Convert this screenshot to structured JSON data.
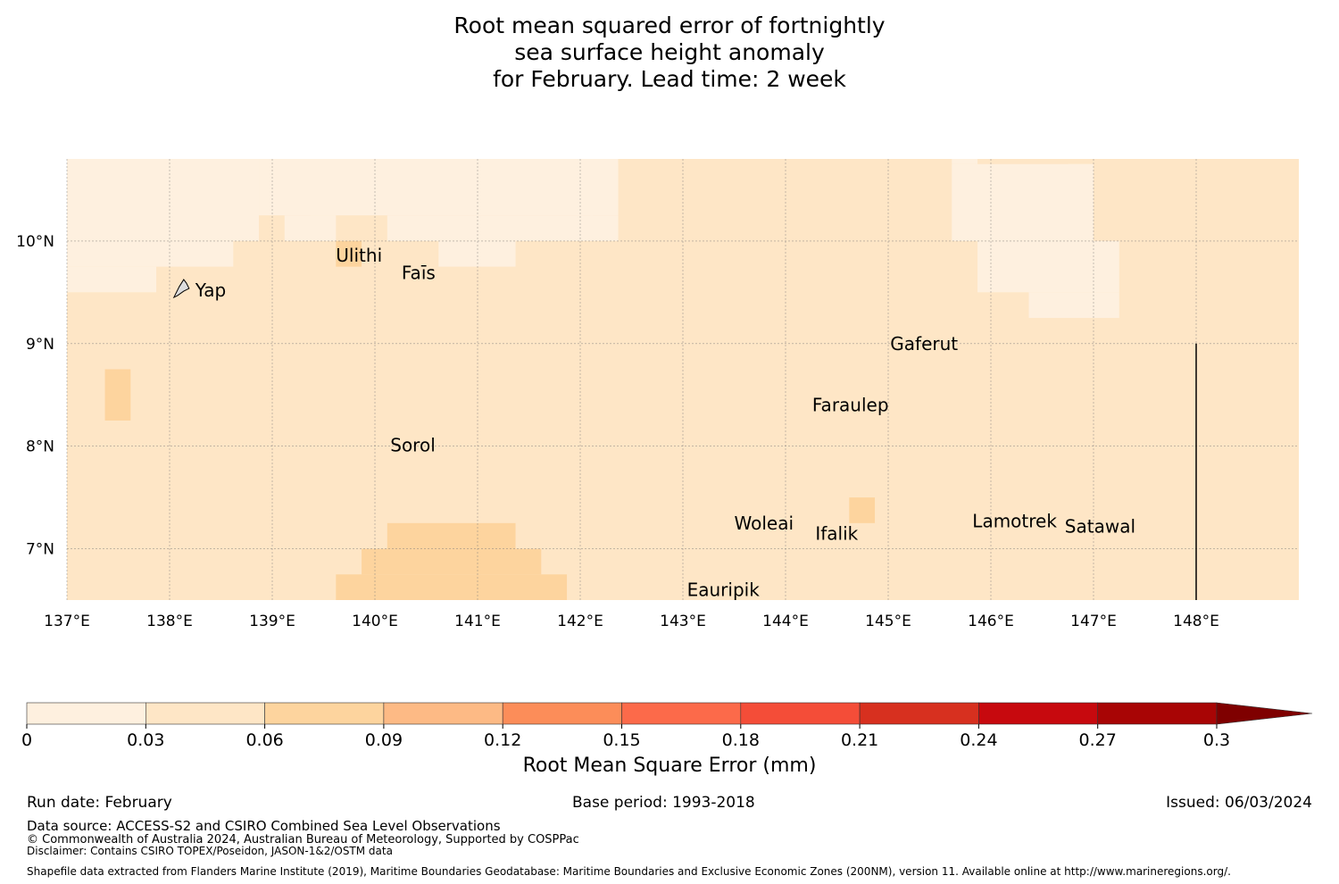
{
  "title_lines": [
    "Root mean squared error of fortnightly",
    "sea surface height anomaly",
    "for February. Lead time: 2 week"
  ],
  "map": {
    "lon_range": [
      137,
      149
    ],
    "lat_range": [
      6.5,
      10.8
    ],
    "lon_ticks": [
      137,
      138,
      139,
      140,
      141,
      142,
      143,
      144,
      145,
      146,
      147,
      148
    ],
    "lon_tick_labels": [
      "137°E",
      "138°E",
      "139°E",
      "140°E",
      "141°E",
      "142°E",
      "143°E",
      "144°E",
      "145°E",
      "146°E",
      "147°E",
      "148°E"
    ],
    "lat_ticks": [
      7,
      8,
      9,
      10
    ],
    "lat_tick_labels": [
      "7°N",
      "8°N",
      "9°N",
      "10°N"
    ],
    "background_color": "#fee6c6",
    "cell_colors": {
      "low": "#fef0df",
      "mid": "#fee6c6",
      "high": "#fdd49e"
    },
    "regions": [
      {
        "level": "low",
        "lon": [
          137.0,
          138.87
        ],
        "lat": [
          10.0,
          10.8
        ]
      },
      {
        "level": "low",
        "lon": [
          138.87,
          142.37
        ],
        "lat": [
          10.25,
          10.8
        ]
      },
      {
        "level": "low",
        "lon": [
          142.1,
          142.37
        ],
        "lat": [
          10.0,
          10.25
        ]
      },
      {
        "level": "low",
        "lon": [
          137.0,
          138.62
        ],
        "lat": [
          9.75,
          10.0
        ]
      },
      {
        "level": "low",
        "lon": [
          137.0,
          137.87
        ],
        "lat": [
          9.5,
          9.75
        ]
      },
      {
        "level": "low",
        "lon": [
          139.12,
          139.62
        ],
        "lat": [
          10.0,
          10.25
        ]
      },
      {
        "level": "low",
        "lon": [
          139.37,
          139.62
        ],
        "lat": [
          10.25,
          10.5
        ]
      },
      {
        "level": "low",
        "lon": [
          140.12,
          142.12
        ],
        "lat": [
          10.0,
          10.25
        ]
      },
      {
        "level": "low",
        "lon": [
          140.62,
          141.37
        ],
        "lat": [
          9.75,
          10.0
        ]
      },
      {
        "level": "mid",
        "lon": [
          142.37,
          149.0
        ],
        "lat": [
          10.75,
          10.8
        ]
      },
      {
        "level": "low",
        "lon": [
          145.62,
          147.0
        ],
        "lat": [
          10.0,
          10.75
        ]
      },
      {
        "level": "low",
        "lon": [
          145.62,
          145.87
        ],
        "lat": [
          10.75,
          10.8
        ]
      },
      {
        "level": "low",
        "lon": [
          146.75,
          147.0
        ],
        "lat": [
          10.5,
          10.75
        ]
      },
      {
        "level": "low",
        "lon": [
          145.87,
          147.25
        ],
        "lat": [
          9.5,
          10.0
        ]
      },
      {
        "level": "low",
        "lon": [
          146.37,
          147.25
        ],
        "lat": [
          9.25,
          9.5
        ]
      },
      {
        "level": "high",
        "lon": [
          139.62,
          139.87
        ],
        "lat": [
          9.75,
          10.0
        ]
      },
      {
        "level": "high",
        "lon": [
          137.37,
          137.62
        ],
        "lat": [
          8.25,
          8.75
        ]
      },
      {
        "level": "high",
        "lon": [
          144.62,
          144.87
        ],
        "lat": [
          7.25,
          7.5
        ]
      },
      {
        "level": "high",
        "lon": [
          140.12,
          141.37
        ],
        "lat": [
          7.0,
          7.25
        ]
      },
      {
        "level": "high",
        "lon": [
          139.87,
          141.62
        ],
        "lat": [
          6.75,
          7.0
        ]
      },
      {
        "level": "high",
        "lon": [
          139.62,
          141.87
        ],
        "lat": [
          6.5,
          6.75
        ]
      }
    ],
    "boundary_line": {
      "lon": 148.0,
      "lat": [
        6.5,
        9.0
      ]
    },
    "places": [
      {
        "name": "Ulithi",
        "lon": 139.62,
        "lat": 9.86
      },
      {
        "name": "Faīs",
        "lon": 140.26,
        "lat": 9.69
      },
      {
        "name": "Yap",
        "lon": 138.25,
        "lat": 9.52
      },
      {
        "name": "Gaferut",
        "lon": 145.02,
        "lat": 9.0
      },
      {
        "name": "Faraulep",
        "lon": 144.26,
        "lat": 8.4
      },
      {
        "name": "Sorol",
        "lon": 140.15,
        "lat": 8.01
      },
      {
        "name": "Woleai",
        "lon": 143.5,
        "lat": 7.25
      },
      {
        "name": "Ifalik",
        "lon": 144.29,
        "lat": 7.15
      },
      {
        "name": "Lamotrek",
        "lon": 145.82,
        "lat": 7.27
      },
      {
        "name": "Satawal",
        "lon": 146.72,
        "lat": 7.22
      },
      {
        "name": "Eauripik",
        "lon": 143.04,
        "lat": 6.6
      }
    ]
  },
  "colorbar": {
    "ticks": [
      "0",
      "0.03",
      "0.06",
      "0.09",
      "0.12",
      "0.15",
      "0.18",
      "0.21",
      "0.24",
      "0.27",
      "0.3"
    ],
    "colors": [
      "#fef0df",
      "#fee6c6",
      "#fdd49e",
      "#fdba85",
      "#fc8d59",
      "#fc6a4a",
      "#f44d38",
      "#d7301f",
      "#c7090e",
      "#a80505"
    ],
    "extend_color": "#7f0000",
    "label": "Root Mean Square Error (mm)"
  },
  "footer": {
    "run_date": "Run date: February",
    "base_period": "Base period: 1993-2018",
    "issued": "Issued: 06/03/2024",
    "data_source": "Data source: ACCESS-S2 and CSIRO Combined Sea Level Observations",
    "copyright": "© Commonwealth of Australia 2024, Australian Bureau of Meteorology, Supported by COSPPac",
    "disclaimer": "Disclaimer: Contains CSIRO TOPEX/Poseidon, JASON-1&2/OSTM data",
    "shapefile": "Shapefile data extracted from Flanders Marine Institute (2019), Maritime Boundaries Geodatabase: Maritime Boundaries and Exclusive Economic Zones (200NM), version 11. Available online at http://www.marineregions.org/."
  }
}
